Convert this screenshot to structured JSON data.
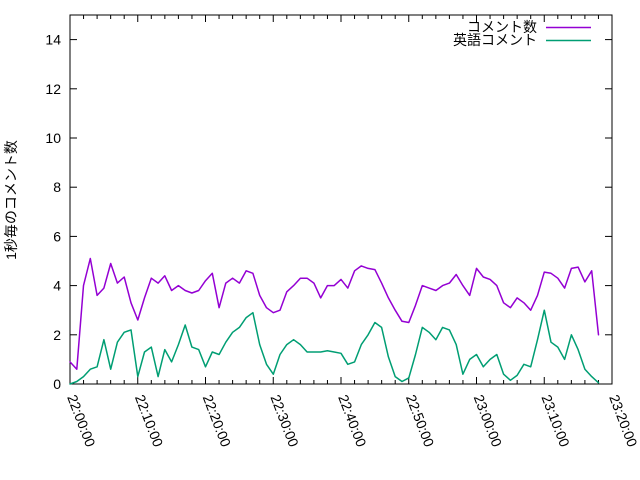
{
  "figure": {
    "background_color": "#ffffff",
    "axis_color": "#000000",
    "title": ""
  },
  "legend": {
    "position": "top-right",
    "entries": [
      {
        "label": "コメント数",
        "color": "#9400d3"
      },
      {
        "label": "英語コメント",
        "color": "#009e73"
      }
    ]
  },
  "chart_data": {
    "type": "line",
    "title": "",
    "xlabel": "",
    "ylabel": "1秒毎のコメント数",
    "ylim": [
      0,
      15
    ],
    "ytick_values": [
      0,
      2,
      4,
      6,
      8,
      10,
      12,
      14
    ],
    "ytick_labels": [
      "0",
      "2",
      "4",
      "6",
      "8",
      "10",
      "12",
      "14"
    ],
    "x_axis": {
      "start_label": "22:00:00",
      "end_label": "23:20:00",
      "range_minutes": [
        0,
        80
      ],
      "major_tick_every_minutes": 10,
      "minor_tick_every_minutes": 2,
      "tick_labels": [
        "22:00:00",
        "22:10:00",
        "22:20:00",
        "22:30:00",
        "22:40:00",
        "22:50:00",
        "23:00:00",
        "23:10:00",
        "23:20:00"
      ],
      "tick_label_rotation_deg": 69
    },
    "grid": false,
    "legend_position": "top-right",
    "series": [
      {
        "name": "コメント数",
        "color": "#9400d3",
        "x_start_minute": 0,
        "x_step_minutes": 1,
        "values": [
          0.9,
          0.6,
          4.0,
          5.1,
          3.6,
          3.9,
          4.9,
          4.1,
          4.35,
          3.3,
          2.6,
          3.5,
          4.3,
          4.1,
          4.4,
          3.8,
          4.0,
          3.8,
          3.7,
          3.8,
          4.2,
          4.5,
          3.1,
          4.1,
          4.3,
          4.1,
          4.6,
          4.5,
          3.6,
          3.1,
          2.9,
          3.0,
          3.75,
          4.0,
          4.3,
          4.3,
          4.1,
          3.5,
          4.0,
          4.0,
          4.25,
          3.9,
          4.6,
          4.8,
          4.7,
          4.65,
          4.1,
          3.5,
          3.0,
          2.55,
          2.5,
          3.2,
          4.0,
          3.9,
          3.8,
          4.0,
          4.1,
          4.45,
          4.0,
          3.6,
          4.7,
          4.35,
          4.25,
          4.0,
          3.3,
          3.1,
          3.5,
          3.3,
          3.0,
          3.6,
          4.55,
          4.5,
          4.3,
          3.9,
          4.7,
          4.75,
          4.15,
          4.6,
          2.0
        ]
      },
      {
        "name": "英語コメント",
        "color": "#009e73",
        "x_start_minute": 0,
        "x_step_minutes": 1,
        "values": [
          0.0,
          0.1,
          0.3,
          0.6,
          0.7,
          1.8,
          0.6,
          1.7,
          2.1,
          2.2,
          0.3,
          1.3,
          1.5,
          0.3,
          1.4,
          0.9,
          1.6,
          2.4,
          1.5,
          1.4,
          0.7,
          1.3,
          1.2,
          1.7,
          2.1,
          2.3,
          2.7,
          2.9,
          1.6,
          0.8,
          0.4,
          1.2,
          1.6,
          1.8,
          1.6,
          1.3,
          1.3,
          1.3,
          1.35,
          1.3,
          1.25,
          0.8,
          0.9,
          1.6,
          2.0,
          2.5,
          2.3,
          1.1,
          0.3,
          0.1,
          0.25,
          1.2,
          2.3,
          2.1,
          1.8,
          2.3,
          2.2,
          1.6,
          0.4,
          1.0,
          1.2,
          0.7,
          1.0,
          1.2,
          0.4,
          0.15,
          0.35,
          0.8,
          0.7,
          1.8,
          3.0,
          1.7,
          1.5,
          1.0,
          2.0,
          1.4,
          0.6,
          0.3,
          0.05
        ]
      }
    ]
  }
}
